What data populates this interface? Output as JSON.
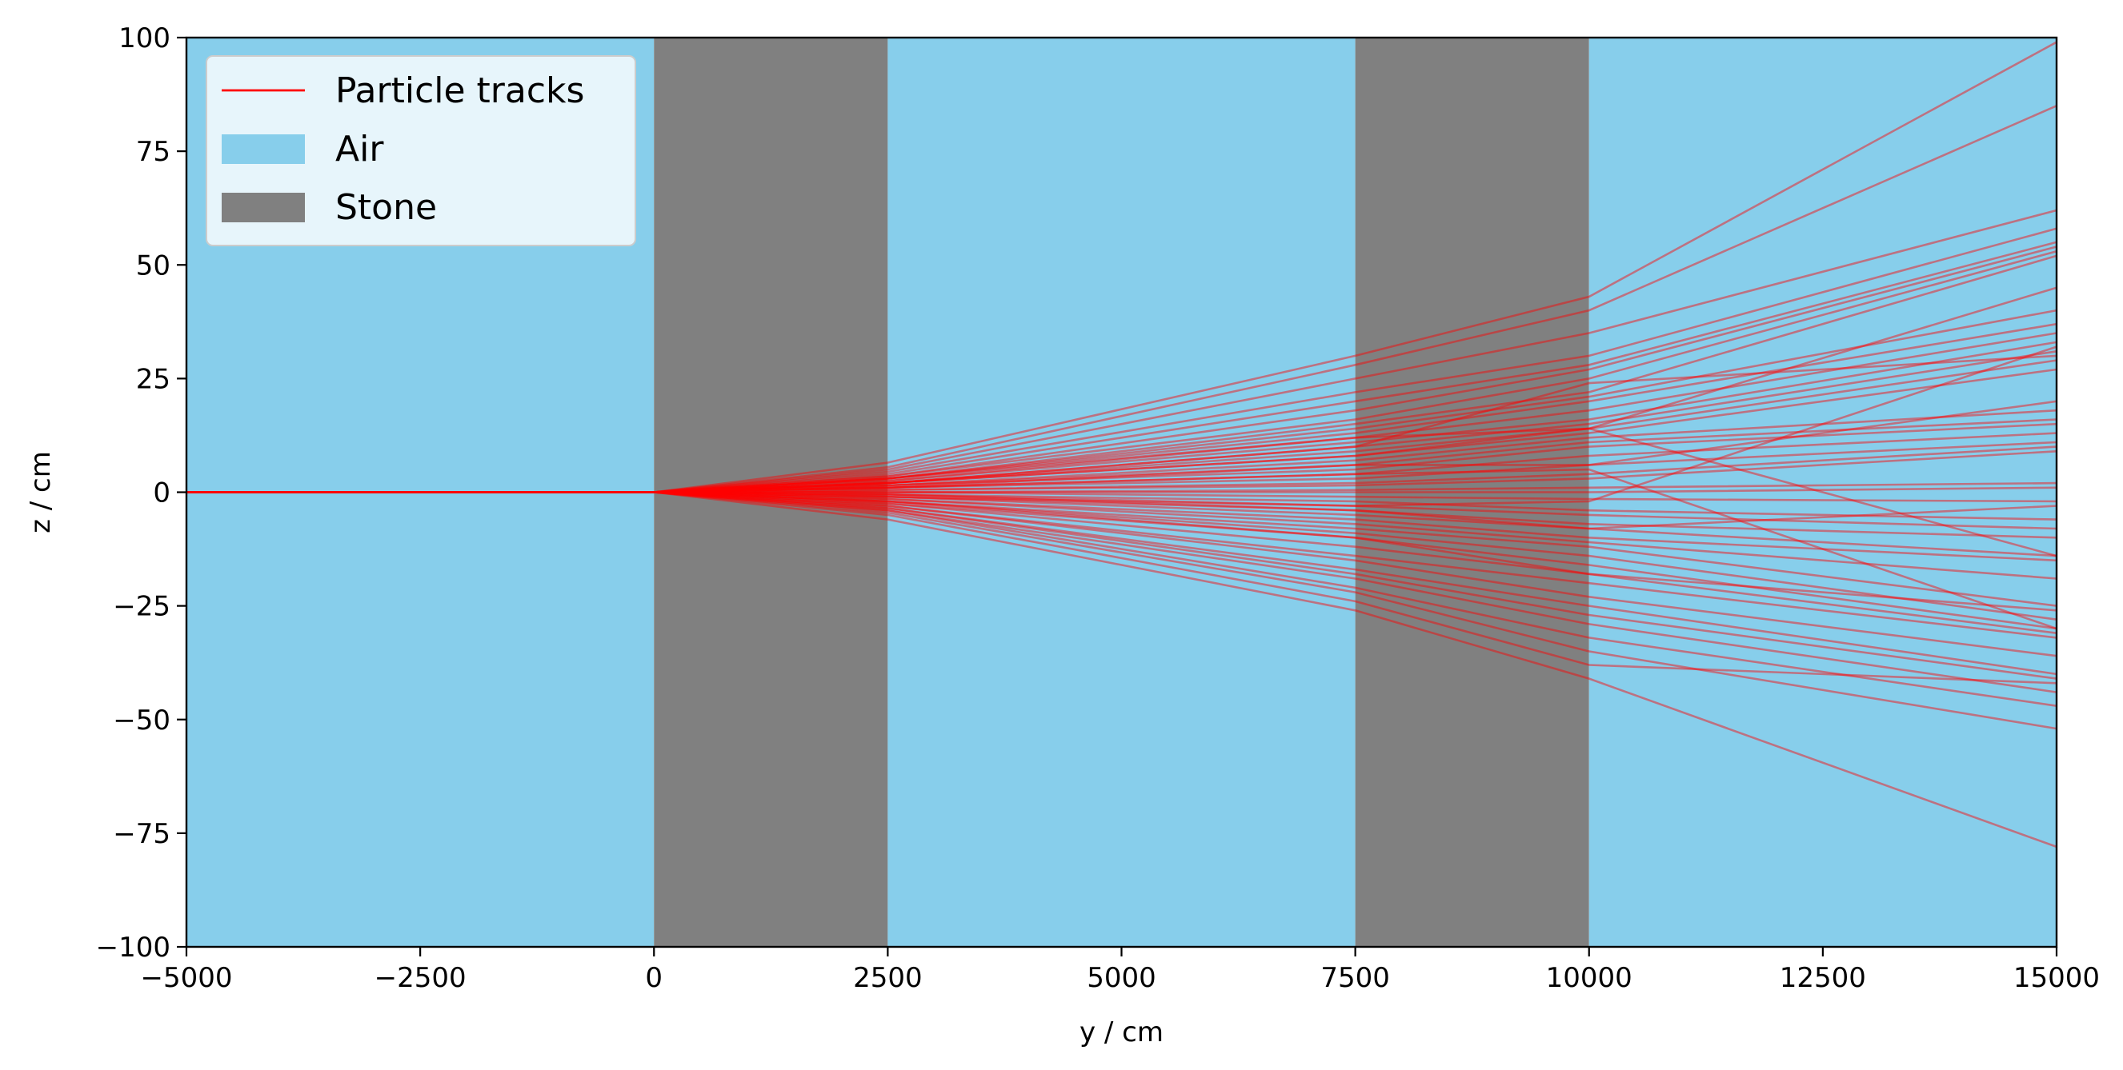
{
  "chart_data": {
    "type": "line",
    "title": "",
    "xlabel": "y / cm",
    "ylabel": "z / cm",
    "xlim": [
      -5000,
      15000
    ],
    "ylim": [
      -100,
      100
    ],
    "xticks": [
      -5000,
      -2500,
      0,
      2500,
      5000,
      7500,
      10000,
      12500,
      15000
    ],
    "xtick_labels": [
      "−5000",
      "−2500",
      "0",
      "2500",
      "5000",
      "7500",
      "10000",
      "12500",
      "15000"
    ],
    "yticks": [
      100,
      75,
      50,
      25,
      0,
      -25,
      -50,
      -75,
      -100
    ],
    "ytick_labels": [
      "100",
      "75",
      "50",
      "25",
      "0",
      "−25",
      "−50",
      "−75",
      "−100"
    ],
    "grid": false,
    "legend_position": "top-left",
    "colors": {
      "air": "#87CEEB",
      "stone": "#808080",
      "track": "#FF0000"
    },
    "legend": [
      {
        "label": "Particle tracks",
        "kind": "line",
        "color": "#FF0000"
      },
      {
        "label": "Air",
        "kind": "patch",
        "color": "#87CEEB"
      },
      {
        "label": "Stone",
        "kind": "patch",
        "color": "#808080"
      }
    ],
    "regions": [
      {
        "material": "Air",
        "y_from": -5000,
        "y_to": 0
      },
      {
        "material": "Stone",
        "y_from": 0,
        "y_to": 2500
      },
      {
        "material": "Air",
        "y_from": 2500,
        "y_to": 7500
      },
      {
        "material": "Stone",
        "y_from": 7500,
        "y_to": 10000
      },
      {
        "material": "Air",
        "y_from": 10000,
        "y_to": 15000
      }
    ],
    "track_vertices_y": [
      -5000,
      0,
      2500,
      7500,
      10000,
      15000
    ],
    "series": [
      {
        "values": [
          0,
          0,
          6.5,
          30,
          43,
          99
        ]
      },
      {
        "values": [
          0,
          0,
          5.5,
          28,
          40,
          85
        ]
      },
      {
        "values": [
          0,
          0,
          5,
          25,
          35,
          62
        ]
      },
      {
        "values": [
          0,
          0,
          4.5,
          22,
          30,
          58
        ]
      },
      {
        "values": [
          0,
          0,
          4,
          20,
          28,
          55
        ]
      },
      {
        "values": [
          0,
          0,
          3.5,
          18,
          27,
          54
        ]
      },
      {
        "values": [
          0,
          0,
          3.5,
          16,
          25,
          53
        ]
      },
      {
        "values": [
          0,
          0,
          3,
          15,
          22,
          52
        ]
      },
      {
        "values": [
          0,
          0,
          3,
          14,
          21,
          40
        ]
      },
      {
        "values": [
          0,
          0,
          3,
          13,
          20,
          37
        ]
      },
      {
        "values": [
          0,
          0,
          2.5,
          12,
          18,
          35
        ]
      },
      {
        "values": [
          0,
          0,
          2.5,
          11,
          16,
          33
        ]
      },
      {
        "values": [
          0,
          0,
          2,
          10,
          15,
          31
        ]
      },
      {
        "values": [
          0,
          0,
          2,
          9,
          14,
          29
        ]
      },
      {
        "values": [
          0,
          0,
          2,
          8,
          13,
          27
        ]
      },
      {
        "values": [
          0,
          0,
          1.5,
          7,
          12,
          18
        ]
      },
      {
        "values": [
          0,
          0,
          1.5,
          6,
          11,
          16
        ]
      },
      {
        "values": [
          0,
          0,
          1.5,
          5,
          10,
          15
        ]
      },
      {
        "values": [
          0,
          0,
          1,
          4,
          8,
          13
        ]
      },
      {
        "values": [
          0,
          0,
          1,
          3,
          6,
          11
        ]
      },
      {
        "values": [
          0,
          0,
          0.5,
          2,
          4,
          10
        ]
      },
      {
        "values": [
          0,
          0,
          0.5,
          1.5,
          3,
          9
        ]
      },
      {
        "values": [
          0,
          0,
          0,
          0.5,
          1,
          2
        ]
      },
      {
        "values": [
          0,
          0,
          0,
          0,
          0,
          1
        ]
      },
      {
        "values": [
          0,
          0,
          0,
          -1,
          -1.5,
          -2
        ]
      },
      {
        "values": [
          0,
          0,
          -0.5,
          -2,
          -4,
          -6
        ]
      },
      {
        "values": [
          0,
          0,
          -0.5,
          -3,
          -5,
          -8
        ]
      },
      {
        "values": [
          0,
          0,
          -1,
          -4,
          -7,
          -10
        ]
      },
      {
        "values": [
          0,
          0,
          -1,
          -5,
          -8,
          -14
        ]
      },
      {
        "values": [
          0,
          0,
          -1.5,
          -6,
          -10,
          -15
        ]
      },
      {
        "values": [
          0,
          0,
          -1.5,
          -7,
          -11,
          -19
        ]
      },
      {
        "values": [
          0,
          0,
          -2,
          -8,
          -12,
          -25
        ]
      },
      {
        "values": [
          0,
          0,
          -2,
          -9,
          -14,
          -28
        ]
      },
      {
        "values": [
          0,
          0,
          -2.5,
          -10,
          -16,
          -30
        ]
      },
      {
        "values": [
          0,
          0,
          -2.5,
          -12,
          -18,
          -31
        ]
      },
      {
        "values": [
          0,
          0,
          -3,
          -14,
          -20,
          -32
        ]
      },
      {
        "values": [
          0,
          0,
          -3,
          -15,
          -23,
          -36
        ]
      },
      {
        "values": [
          0,
          0,
          -3.5,
          -17,
          -25,
          -40
        ]
      },
      {
        "values": [
          0,
          0,
          -3.5,
          -18,
          -27,
          -41
        ]
      },
      {
        "values": [
          0,
          0,
          -4,
          -19,
          -29,
          -44
        ]
      },
      {
        "values": [
          0,
          0,
          -4,
          -21,
          -32,
          -47
        ]
      },
      {
        "values": [
          0,
          0,
          -4.5,
          -22,
          -35,
          -52
        ]
      },
      {
        "values": [
          0,
          0,
          -5,
          -24,
          -38,
          -42
        ]
      },
      {
        "values": [
          0,
          0,
          -6,
          -26,
          -41,
          -78
        ]
      },
      {
        "values": [
          0,
          0,
          2,
          8,
          14,
          -14
        ]
      },
      {
        "values": [
          0,
          0,
          1,
          4,
          5,
          -30
        ]
      },
      {
        "values": [
          0,
          0,
          -1,
          -3,
          -2,
          32
        ]
      },
      {
        "values": [
          0,
          0,
          3,
          12,
          14,
          45
        ]
      },
      {
        "values": [
          0,
          0,
          -2,
          -10,
          -18,
          -26
        ]
      },
      {
        "values": [
          0,
          0,
          1,
          6,
          6,
          20
        ]
      },
      {
        "values": [
          0,
          0,
          -0.5,
          -4,
          -8,
          -3
        ]
      },
      {
        "values": [
          0,
          0,
          2,
          10,
          24,
          30
        ]
      }
    ]
  }
}
